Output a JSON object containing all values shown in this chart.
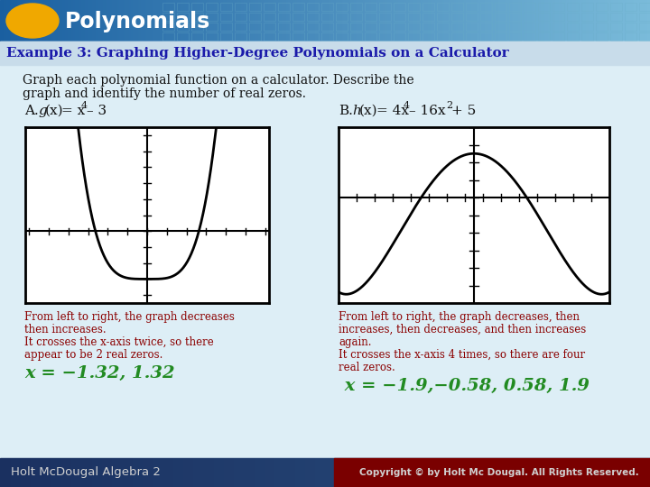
{
  "title_text": "Polynomials",
  "header_color_left": "#1a5fa0",
  "header_color_right": "#7abbda",
  "oval_color": "#f0a800",
  "example_title": "Example 3: Graphing Higher-Degree Polynomials on a Calculator",
  "body_bg_color": "#ddeef6",
  "example_bar_color": "#c8dcea",
  "body_text_line1": "Graph each polynomial function on a calculator. Describe the",
  "body_text_line2": "graph and identify the number of real zeros.",
  "desc_color": "#8b0000",
  "zeros_color": "#228b22",
  "desc_A": [
    "From left to right, the graph decreases",
    "then increases.",
    "It crosses the x-axis twice, so there",
    "appear to be 2 real zeros."
  ],
  "zeros_A": "x = −1.32, 1.32",
  "desc_B": [
    "From left to right, the graph decreases, then",
    "increases, then decreases, and then increases",
    "again.",
    "It crosses the x-axis 4 times, so there are four",
    "real zeros."
  ],
  "zeros_B": " x = −1.9,−0.58, 0.58, 1.9",
  "footer_text": "Holt McDougal Algebra 2",
  "footer_right": "Copyright © by Holt Mc Dougal. All Rights Reserved.",
  "footer_bg": "#1a3060",
  "footer_right_bg": "#8b0000",
  "footer_color": "#e0e0e0",
  "graph_A_xlim": [
    -3.1,
    3.1
  ],
  "graph_A_ylim": [
    -4.5,
    6.5
  ],
  "graph_B_xlim": [
    -1.5,
    1.5
  ],
  "graph_B_ylim": [
    -12,
    8
  ]
}
